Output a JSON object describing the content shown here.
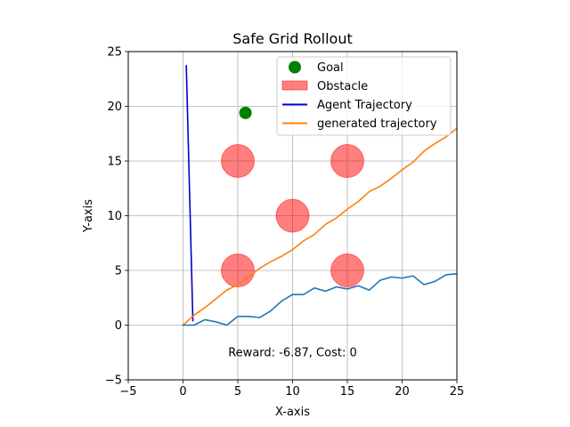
{
  "chart_data": {
    "type": "line",
    "title": "Safe Grid Rollout",
    "xlabel": "X-axis",
    "ylabel": "Y-axis",
    "xlim": [
      -5,
      25
    ],
    "ylim": [
      -5,
      25
    ],
    "xticks": [
      -5,
      0,
      5,
      10,
      15,
      20,
      25
    ],
    "yticks": [
      -5,
      0,
      5,
      10,
      15,
      20,
      25
    ],
    "grid": true,
    "legend_position": "top-right",
    "goal": {
      "name": "Goal",
      "x": 5.7,
      "y": 19.4,
      "color": "#008000"
    },
    "obstacles": {
      "name": "Obstacle",
      "color": "#ff0000",
      "radius": 1.5,
      "centers": [
        [
          5,
          15
        ],
        [
          15,
          15
        ],
        [
          10,
          10
        ],
        [
          5,
          5
        ],
        [
          15,
          5
        ]
      ]
    },
    "series": [
      {
        "name": "Agent Trajectory",
        "color": "#0000cc",
        "x": [
          0.3,
          0.9
        ],
        "y": [
          23.7,
          0.4
        ]
      },
      {
        "name": "generated trajectory",
        "color": "#ff7f0e",
        "x": [
          0,
          1,
          2,
          3,
          4,
          5,
          6,
          7,
          8,
          9,
          10,
          11,
          12,
          13,
          14,
          15,
          16,
          17,
          18,
          19,
          20,
          21,
          22,
          23,
          24,
          25
        ],
        "y": [
          0,
          0.9,
          1.6,
          2.4,
          3.2,
          3.7,
          4.4,
          5.2,
          5.8,
          6.3,
          6.9,
          7.7,
          8.3,
          9.2,
          9.8,
          10.6,
          11.3,
          12.2,
          12.7,
          13.4,
          14.2,
          14.9,
          15.9,
          16.6,
          17.2,
          18.0
        ]
      },
      {
        "name": "",
        "color": "#1f77b4",
        "x": [
          0,
          1,
          2,
          3,
          4,
          5,
          6,
          7,
          8,
          9,
          10,
          11,
          12,
          13,
          14,
          15,
          16,
          17,
          18,
          19,
          20,
          21,
          22,
          23,
          24,
          25
        ],
        "y": [
          0,
          0,
          0.5,
          0.3,
          0,
          0.8,
          0.8,
          0.7,
          1.3,
          2.2,
          2.8,
          2.8,
          3.4,
          3.1,
          3.5,
          3.3,
          3.6,
          3.2,
          4.1,
          4.4,
          4.3,
          4.5,
          3.7,
          4.0,
          4.6,
          4.7
        ]
      }
    ],
    "annotation": {
      "text": "Reward: -6.87, Cost: 0",
      "x": 10,
      "y": -2.5
    }
  }
}
